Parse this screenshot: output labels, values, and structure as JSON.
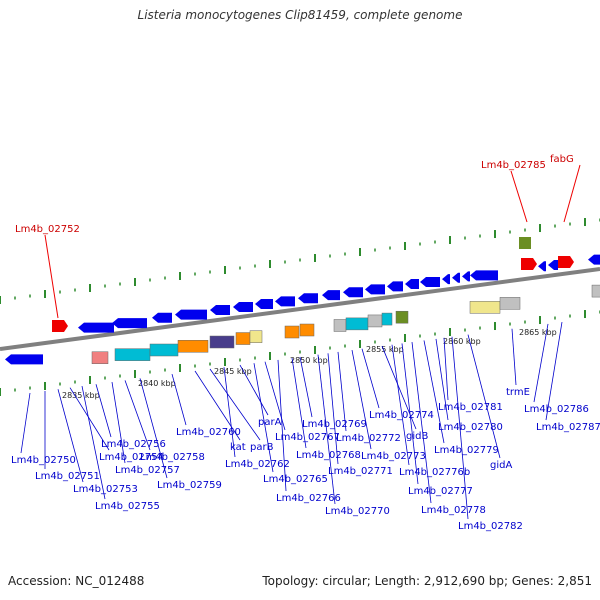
{
  "title": "Listeria monocytogenes Clip81459, complete genome",
  "footer": {
    "accession": "Accession: NC_012488",
    "info": "Topology: circular; Length: 2,912,690 bp; Genes: 2,851"
  },
  "colors": {
    "backbone": "#808080",
    "gene_forward": "#0000ee",
    "rna_feature": "#ee0000",
    "tick": "#2e8b2e",
    "gene_label": "#0000cc",
    "rna_label": "#cc0000"
  },
  "scale_labels": [
    "2835 kbp",
    "2840 kbp",
    "2845 kbp",
    "2850 kbp",
    "2855 kbp",
    "2860 kbp",
    "2865 kbp"
  ],
  "rna_labels": [
    "Lm4b_02752",
    "Lm4b_02785",
    "fabG"
  ],
  "gene_labels": [
    "Lm4b_02750",
    "Lm4b_02751",
    "Lm4b_02753",
    "Lm4b_02754",
    "Lm4b_02755",
    "Lm4b_02756",
    "Lm4b_02757",
    "Lm4b_02758",
    "Lm4b_02759",
    "Lm4b_02760",
    "kat",
    "parB",
    "Lm4b_02762",
    "parA",
    "Lm4b_02765",
    "Lm4b_02767",
    "Lm4b_02766",
    "Lm4b_02768",
    "Lm4b_02769",
    "Lm4b_02770",
    "Lm4b_02771",
    "Lm4b_02772",
    "Lm4b_02773",
    "Lm4b_02774",
    "gidB",
    "Lm4b_02776b",
    "Lm4b_02777",
    "Lm4b_02778",
    "Lm4b_02779",
    "Lm4b_02780",
    "Lm4b_02781",
    "Lm4b_02782",
    "gidA",
    "trmE",
    "Lm4b_02786",
    "Lm4b_02787"
  ]
}
